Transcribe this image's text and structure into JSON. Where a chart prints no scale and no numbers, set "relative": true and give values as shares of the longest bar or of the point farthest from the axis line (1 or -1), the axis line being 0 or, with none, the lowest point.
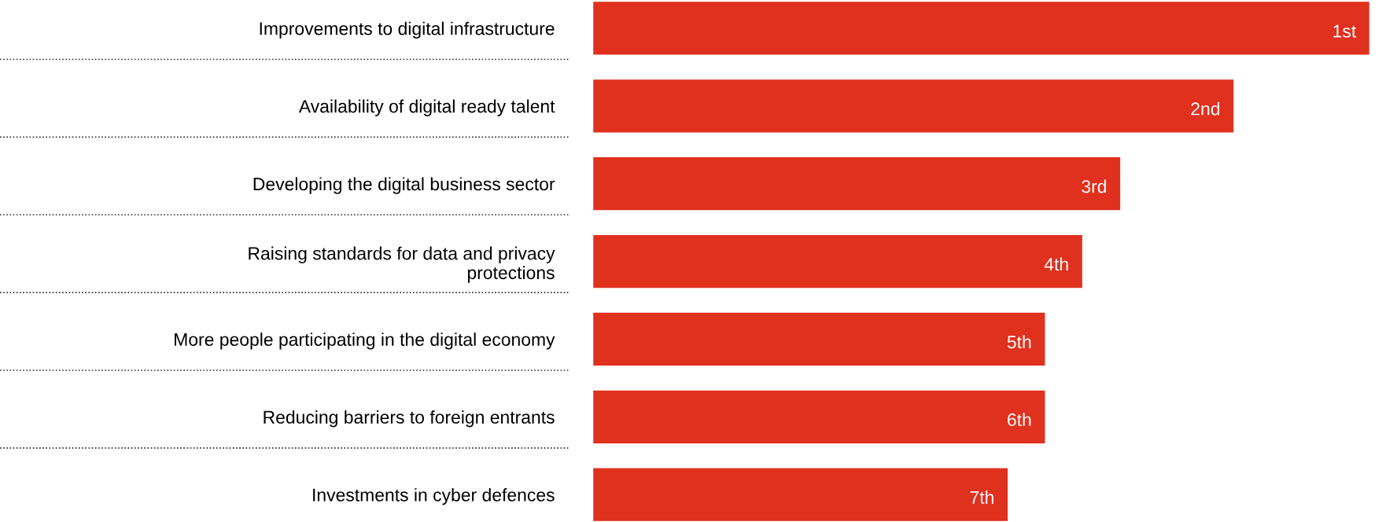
{
  "chart_data": {
    "type": "bar",
    "orientation": "horizontal",
    "relative": true,
    "color": "#e0301e",
    "categories": [
      "Improvements to digital infrastructure",
      "Availability of digital ready talent",
      "Developing the digital business sector",
      "Raising standards for data and privacy\nprotections",
      "More people participating in the digital economy",
      "Reducing barriers to foreign entrants",
      "Investments in cyber defences"
    ],
    "values": [
      1,
      0.825,
      0.679,
      0.63,
      0.582,
      0.582,
      0.534
    ],
    "annotations": [
      "1st",
      "2nd",
      "3rd",
      "4th",
      "5th",
      "6th",
      "7th"
    ],
    "grid": false,
    "legend": false
  }
}
